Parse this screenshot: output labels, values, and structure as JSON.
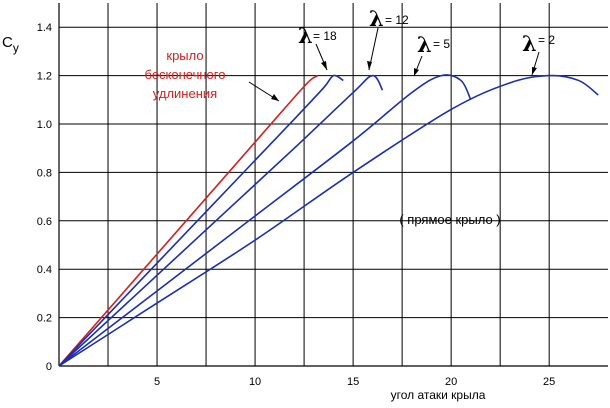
{
  "chart_data": {
    "type": "line",
    "ylabel": "C",
    "ylabel_sub": "y",
    "xlabel": "угол атаки крыла",
    "xlim": [
      0,
      28
    ],
    "ylim": [
      0,
      1.5
    ],
    "x_ticks": [
      5,
      10,
      15,
      20,
      25
    ],
    "y_ticks": [
      0,
      0.2,
      0.4,
      0.6,
      0.8,
      1.0,
      1.2,
      1.4
    ],
    "y_tick_labels": [
      "0",
      "0.2",
      "0.4",
      "0.6",
      "0.8",
      "1.0",
      "1.2",
      "1.4"
    ],
    "x_gridlines": [
      2.5,
      5,
      7.5,
      10,
      12.5,
      15,
      17.5,
      20,
      22.5,
      25
    ],
    "grid": true,
    "annotation_wing": "( прямое крыло )",
    "series": [
      {
        "name": "крыло бесконечного удлинения",
        "label_lines": [
          "крыло",
          "бесконечного",
          "удлинения"
        ],
        "color": "#d42020",
        "x": [
          0,
          2,
          4,
          6,
          8,
          10,
          12,
          12.8,
          13.2
        ],
        "y": [
          0,
          0.185,
          0.37,
          0.555,
          0.74,
          0.925,
          1.11,
          1.18,
          1.2
        ]
      },
      {
        "name": "λ = 18",
        "lambda_value": "= 18",
        "color": "#1a2fb0",
        "x": [
          0,
          4,
          8,
          12,
          13.5,
          14.0,
          14.5
        ],
        "y": [
          0,
          0.34,
          0.68,
          1.02,
          1.15,
          1.2,
          1.18
        ]
      },
      {
        "name": "λ = 12",
        "lambda_value": "= 12",
        "color": "#1a2fb0",
        "x": [
          0,
          4,
          8,
          12,
          15,
          16,
          16.5
        ],
        "y": [
          0,
          0.3,
          0.6,
          0.9,
          1.13,
          1.2,
          1.14
        ]
      },
      {
        "name": "λ = 5",
        "lambda_value": "= 5",
        "color": "#1a2fb0",
        "x": [
          0,
          5,
          10,
          15,
          18,
          19.5,
          20.5,
          21
        ],
        "y": [
          0,
          0.31,
          0.62,
          0.93,
          1.13,
          1.2,
          1.18,
          1.1
        ]
      },
      {
        "name": "λ = 2",
        "lambda_value": "= 2",
        "color": "#1a2fb0",
        "x": [
          0,
          5,
          10,
          15,
          20,
          23,
          25,
          26.5,
          27.5
        ],
        "y": [
          0,
          0.26,
          0.52,
          0.8,
          1.06,
          1.17,
          1.2,
          1.18,
          1.12
        ]
      }
    ]
  }
}
